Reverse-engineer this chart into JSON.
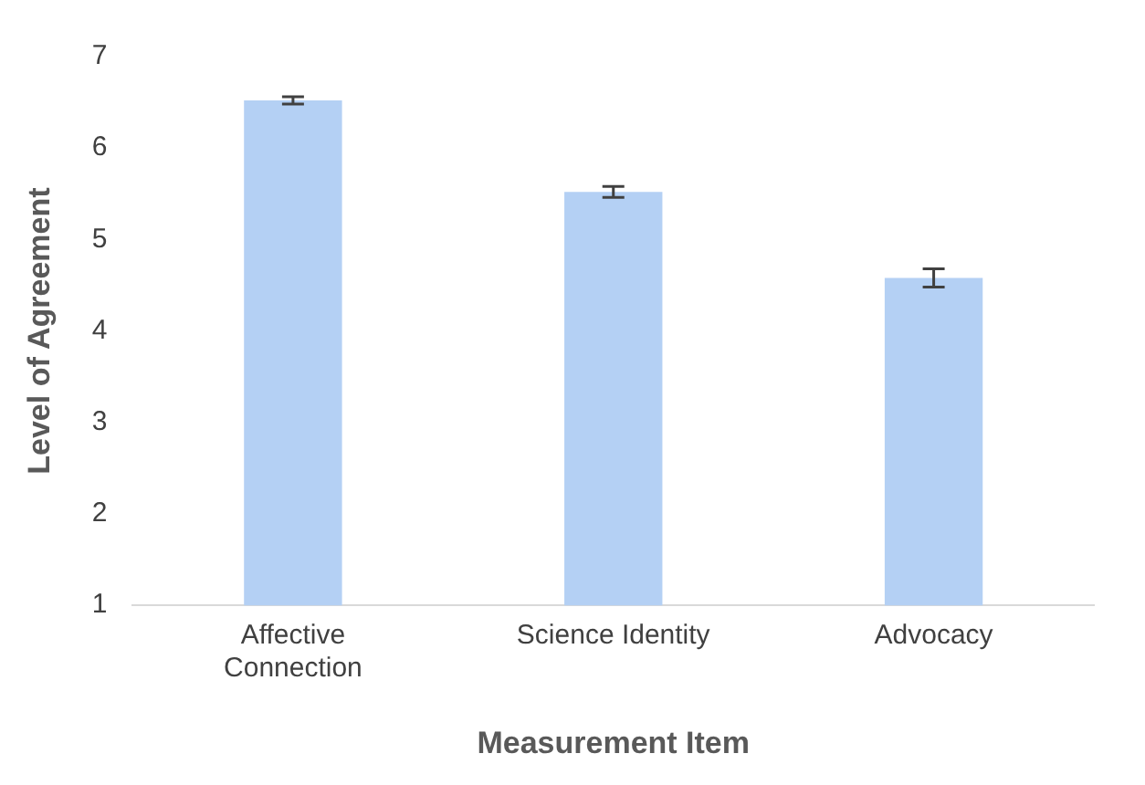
{
  "chart_data": {
    "type": "bar",
    "xlabel": "Measurement Item",
    "ylabel": "Level of Agreement",
    "categories": [
      "Affective\nConnection",
      "Science Identity",
      "Advocacy"
    ],
    "values": [
      6.52,
      5.52,
      4.58
    ],
    "errors": [
      0.04,
      0.06,
      0.1
    ],
    "color": "#b4d0f4",
    "ylim": [
      1,
      7
    ],
    "yticks": [
      1,
      2,
      3,
      4,
      5,
      6,
      7
    ],
    "grid": false,
    "legend": false
  }
}
